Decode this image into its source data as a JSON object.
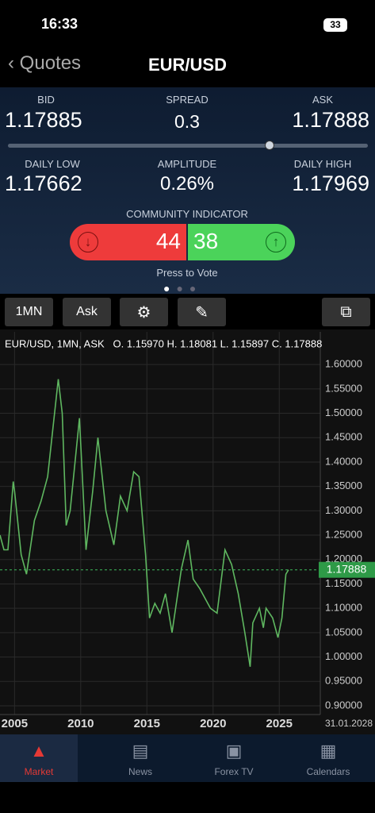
{
  "status": {
    "time": "16:33",
    "battery": "33"
  },
  "nav": {
    "back": "Quotes",
    "title": "EUR/USD"
  },
  "quote": {
    "bid_label": "BID",
    "bid": "1.17885",
    "spread_label": "SPREAD",
    "spread": "0.3",
    "ask_label": "ASK",
    "ask": "1.17888",
    "low_label": "DAILY LOW",
    "low": "1.17662",
    "amplitude_label": "AMPLITUDE",
    "amplitude": "0.26%",
    "high_label": "DAILY HIGH",
    "high": "1.17969"
  },
  "community": {
    "title": "COMMUNITY INDICATOR",
    "down": "44",
    "up": "38",
    "hint": "Press to Vote"
  },
  "toolbar": {
    "period": "1MN",
    "side": "Ask"
  },
  "chart_data": {
    "type": "line",
    "title": "EUR/USD, 1MN, ASK   O. 1.15970 H. 1.18081 L. 1.15897 C. 1.17888",
    "x": [
      2003.9,
      2004.2,
      2004.5,
      2004.9,
      2005.0,
      2005.5,
      2005.9,
      2006.5,
      2007.0,
      2007.5,
      2007.9,
      2008.3,
      2008.6,
      2008.9,
      2009.2,
      2009.9,
      2010.4,
      2010.9,
      2011.3,
      2011.9,
      2012.5,
      2013.0,
      2013.5,
      2014.0,
      2014.4,
      2014.9,
      2015.2,
      2015.6,
      2016.0,
      2016.4,
      2016.9,
      2017.6,
      2018.1,
      2018.5,
      2019.0,
      2019.8,
      2020.3,
      2020.9,
      2021.4,
      2021.9,
      2022.4,
      2022.8,
      2023.0,
      2023.5,
      2023.8,
      2024.0,
      2024.5,
      2024.9,
      2025.2,
      2025.5,
      2025.7
    ],
    "values": [
      1.25,
      1.22,
      1.22,
      1.36,
      1.34,
      1.21,
      1.17,
      1.28,
      1.32,
      1.37,
      1.47,
      1.57,
      1.5,
      1.27,
      1.3,
      1.49,
      1.22,
      1.34,
      1.45,
      1.3,
      1.23,
      1.33,
      1.3,
      1.38,
      1.37,
      1.21,
      1.08,
      1.11,
      1.09,
      1.13,
      1.05,
      1.18,
      1.24,
      1.16,
      1.14,
      1.1,
      1.09,
      1.22,
      1.19,
      1.13,
      1.05,
      0.98,
      1.07,
      1.1,
      1.06,
      1.1,
      1.08,
      1.04,
      1.08,
      1.17,
      1.17888
    ],
    "color": "#5fb760",
    "last_price": 1.17888,
    "date_label": "31.01.2028",
    "xlim": [
      2003.9,
      2028.1
    ],
    "ylim": [
      0.882,
      1.667
    ],
    "xticks": [
      2005,
      2010,
      2015,
      2020,
      2025
    ],
    "yticks": [
      {
        "value": 0.9,
        "label": "0.90000"
      },
      {
        "value": 0.95,
        "label": "0.95000"
      },
      {
        "value": 1.0,
        "label": "1.00000"
      },
      {
        "value": 1.05,
        "label": "1.05000"
      },
      {
        "value": 1.1,
        "label": "1.10000"
      },
      {
        "value": 1.15,
        "label": "1.15000"
      },
      {
        "value": 1.2,
        "label": "1.20000"
      },
      {
        "value": 1.25,
        "label": "1.25000"
      },
      {
        "value": 1.3,
        "label": "1.30000"
      },
      {
        "value": 1.35,
        "label": "1.35000"
      },
      {
        "value": 1.4,
        "label": "1.40000"
      },
      {
        "value": 1.45,
        "label": "1.45000"
      },
      {
        "value": 1.5,
        "label": "1.50000"
      },
      {
        "value": 1.55,
        "label": "1.55000"
      },
      {
        "value": 1.6,
        "label": "1.60000"
      }
    ],
    "grid": true
  },
  "tabs": [
    "Market",
    "News",
    "Forex TV",
    "Calendars"
  ]
}
